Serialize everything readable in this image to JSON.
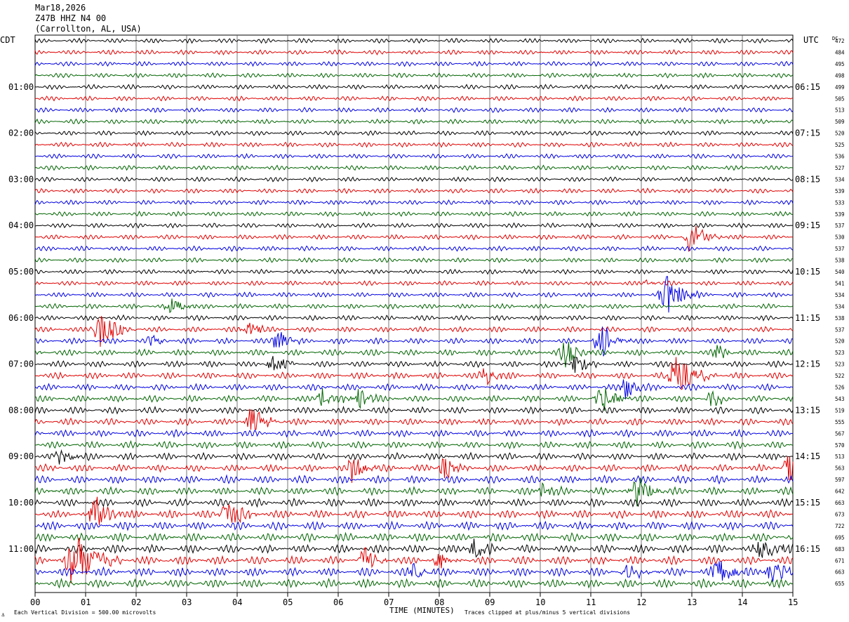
{
  "header": {
    "date": "Mar18,2026",
    "station": "Z47B HHZ N4 00",
    "location": "(Carrollton, AL, USA)"
  },
  "labels": {
    "left_zone": "CDT",
    "right_zone": "UTC",
    "dc_label": "DC",
    "x_title": "TIME (MINUTES)",
    "scale_note": "Each Vertical Division =  500.00 microvolts",
    "clip_note": "Traces clipped at plus/minus 5 vertical divisions",
    "corner_mark": "⚓"
  },
  "chart_data": {
    "type": "line",
    "x_ticks": [
      "00",
      "01",
      "02",
      "03",
      "04",
      "05",
      "06",
      "07",
      "08",
      "09",
      "10",
      "11",
      "12",
      "13",
      "14",
      "15"
    ],
    "xlim": [
      0,
      15
    ],
    "xlabel": "TIME (MINUTES)",
    "trace_colors": [
      "#000000",
      "#e00000",
      "#0000e0",
      "#006400"
    ],
    "left_hour_labels": [
      {
        "row": 4,
        "label": "01:00"
      },
      {
        "row": 8,
        "label": "02:00"
      },
      {
        "row": 12,
        "label": "03:00"
      },
      {
        "row": 16,
        "label": "04:00"
      },
      {
        "row": 20,
        "label": "05:00"
      },
      {
        "row": 24,
        "label": "06:00"
      },
      {
        "row": 28,
        "label": "07:00"
      },
      {
        "row": 32,
        "label": "08:00"
      },
      {
        "row": 36,
        "label": "09:00"
      },
      {
        "row": 40,
        "label": "10:00"
      },
      {
        "row": 44,
        "label": "11:00"
      }
    ],
    "right_hour_labels": [
      {
        "row": 4,
        "label": "06:15"
      },
      {
        "row": 8,
        "label": "07:15"
      },
      {
        "row": 12,
        "label": "08:15"
      },
      {
        "row": 16,
        "label": "09:15"
      },
      {
        "row": 20,
        "label": "10:15"
      },
      {
        "row": 24,
        "label": "11:15"
      },
      {
        "row": 28,
        "label": "12:15"
      },
      {
        "row": 32,
        "label": "13:15"
      },
      {
        "row": 36,
        "label": "14:15"
      },
      {
        "row": 40,
        "label": "15:15"
      },
      {
        "row": 44,
        "label": "16:15"
      }
    ],
    "dc_offsets": [
      472,
      484,
      495,
      498,
      499,
      505,
      513,
      509,
      520,
      525,
      536,
      527,
      534,
      539,
      533,
      539,
      537,
      530,
      537,
      538,
      540,
      541,
      534,
      534,
      538,
      537,
      520,
      523,
      523,
      522,
      526,
      543,
      519,
      555,
      567,
      570,
      513,
      563,
      597,
      642,
      663,
      673,
      722,
      695,
      683,
      671,
      663,
      655
    ],
    "row_activity": [
      0.9,
      0.9,
      0.9,
      0.9,
      0.9,
      0.9,
      0.9,
      0.9,
      0.9,
      0.9,
      0.9,
      0.9,
      0.9,
      0.9,
      0.9,
      0.9,
      0.9,
      0.95,
      0.95,
      0.9,
      0.9,
      0.9,
      0.95,
      0.95,
      1.0,
      1.05,
      1.1,
      1.2,
      1.2,
      1.25,
      1.25,
      1.25,
      1.3,
      1.3,
      1.35,
      1.35,
      1.35,
      1.4,
      1.5,
      1.5,
      1.5,
      1.55,
      1.6,
      1.6,
      1.6,
      1.6,
      1.65,
      1.65
    ],
    "events": [
      {
        "row": 17,
        "minute": 13.0,
        "amp": 3.2,
        "dur": 0.6
      },
      {
        "row": 21,
        "minute": 12.1,
        "amp": 0.6,
        "dur": 0.3
      },
      {
        "row": 22,
        "minute": 12.5,
        "amp": 3.2,
        "dur": 0.7
      },
      {
        "row": 23,
        "minute": 2.7,
        "amp": 1.2,
        "dur": 0.6
      },
      {
        "row": 25,
        "minute": 1.3,
        "amp": 3.0,
        "dur": 0.7
      },
      {
        "row": 25,
        "minute": 4.2,
        "amp": 1.5,
        "dur": 0.5
      },
      {
        "row": 26,
        "minute": 2.3,
        "amp": 1.3,
        "dur": 0.4
      },
      {
        "row": 26,
        "minute": 4.8,
        "amp": 2.0,
        "dur": 0.5
      },
      {
        "row": 26,
        "minute": 11.2,
        "amp": 2.8,
        "dur": 0.6
      },
      {
        "row": 27,
        "minute": 10.5,
        "amp": 2.2,
        "dur": 0.6
      },
      {
        "row": 27,
        "minute": 13.5,
        "amp": 1.5,
        "dur": 0.4
      },
      {
        "row": 28,
        "minute": 4.7,
        "amp": 1.8,
        "dur": 0.5
      },
      {
        "row": 28,
        "minute": 10.7,
        "amp": 2.0,
        "dur": 0.5
      },
      {
        "row": 29,
        "minute": 8.9,
        "amp": 1.8,
        "dur": 0.5
      },
      {
        "row": 29,
        "minute": 12.7,
        "amp": 3.0,
        "dur": 0.8
      },
      {
        "row": 30,
        "minute": 11.7,
        "amp": 2.0,
        "dur": 0.5
      },
      {
        "row": 31,
        "minute": 5.7,
        "amp": 2.0,
        "dur": 0.5
      },
      {
        "row": 31,
        "minute": 6.4,
        "amp": 2.0,
        "dur": 0.5
      },
      {
        "row": 31,
        "minute": 11.2,
        "amp": 2.2,
        "dur": 0.6
      },
      {
        "row": 31,
        "minute": 13.4,
        "amp": 1.6,
        "dur": 0.4
      },
      {
        "row": 33,
        "minute": 4.3,
        "amp": 2.6,
        "dur": 0.6
      },
      {
        "row": 36,
        "minute": 0.5,
        "amp": 1.3,
        "dur": 0.6
      },
      {
        "row": 37,
        "minute": 6.3,
        "amp": 2.5,
        "dur": 0.5
      },
      {
        "row": 37,
        "minute": 8.1,
        "amp": 2.0,
        "dur": 0.5
      },
      {
        "row": 37,
        "minute": 14.9,
        "amp": 2.5,
        "dur": 0.4
      },
      {
        "row": 39,
        "minute": 10.0,
        "amp": 1.6,
        "dur": 0.5
      },
      {
        "row": 39,
        "minute": 11.9,
        "amp": 2.4,
        "dur": 0.6
      },
      {
        "row": 41,
        "minute": 1.2,
        "amp": 2.8,
        "dur": 0.6
      },
      {
        "row": 41,
        "minute": 3.8,
        "amp": 2.8,
        "dur": 0.6
      },
      {
        "row": 44,
        "minute": 8.7,
        "amp": 1.8,
        "dur": 0.5
      },
      {
        "row": 44,
        "minute": 14.4,
        "amp": 1.8,
        "dur": 0.8
      },
      {
        "row": 45,
        "minute": 0.8,
        "amp": 4.5,
        "dur": 0.9
      },
      {
        "row": 45,
        "minute": 6.5,
        "amp": 2.0,
        "dur": 0.5
      },
      {
        "row": 45,
        "minute": 8.0,
        "amp": 1.8,
        "dur": 0.5
      },
      {
        "row": 46,
        "minute": 7.5,
        "amp": 1.6,
        "dur": 0.5
      },
      {
        "row": 46,
        "minute": 11.7,
        "amp": 1.6,
        "dur": 0.5
      },
      {
        "row": 46,
        "minute": 13.5,
        "amp": 2.6,
        "dur": 0.6
      },
      {
        "row": 46,
        "minute": 14.6,
        "amp": 2.0,
        "dur": 0.6
      }
    ]
  }
}
